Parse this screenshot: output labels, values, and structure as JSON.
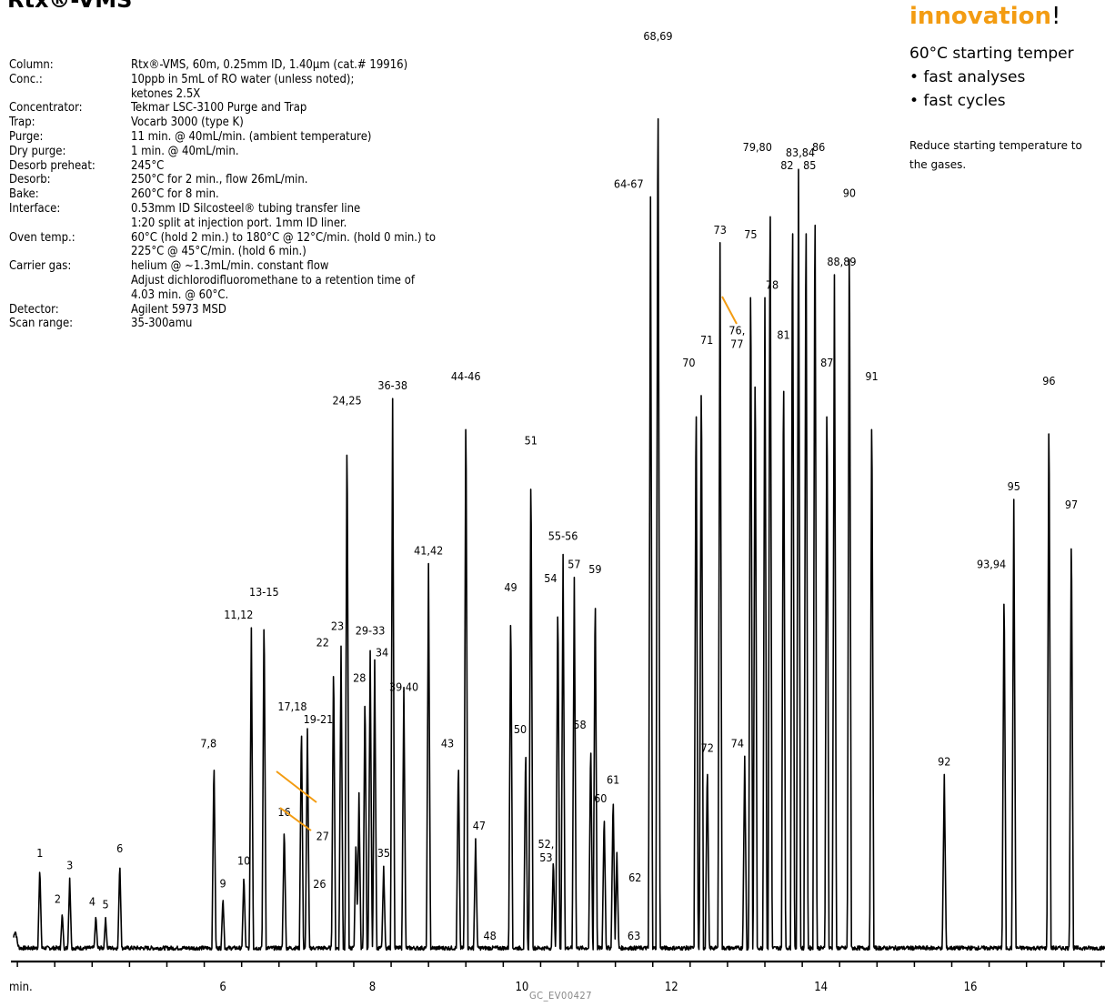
{
  "title": "Rtx®-VMS",
  "conditions": [
    {
      "label": "Column:",
      "value": "Rtx®-VMS, 60m, 0.25mm ID, 1.40µm (cat.# 19916)"
    },
    {
      "label": "Conc.:",
      "value": "10ppb in 5mL of RO water (unless noted);"
    },
    {
      "label": "",
      "value": "ketones 2.5X"
    },
    {
      "label": "Concentrator:",
      "value": "Tekmar LSC-3100 Purge and Trap"
    },
    {
      "label": "Trap:",
      "value": "Vocarb 3000 (type K)"
    },
    {
      "label": "Purge:",
      "value": "11 min. @ 40mL/min. (ambient temperature)"
    },
    {
      "label": "Dry purge:",
      "value": "1 min. @ 40mL/min."
    },
    {
      "label": "Desorb preheat:",
      "value": "245°C"
    },
    {
      "label": "Desorb:",
      "value": "250°C for 2 min., flow 26mL/min."
    },
    {
      "label": "Bake:",
      "value": "260°C for 8 min."
    },
    {
      "label": "Interface:",
      "value": "0.53mm ID Silcosteel® tubing transfer line"
    },
    {
      "label": "",
      "value": "1:20 split at injection port. 1mm ID liner."
    },
    {
      "label": "Oven temp.:",
      "value": "60°C (hold 2 min.) to 180°C @ 12°C/min. (hold 0 min.) to"
    },
    {
      "label": "",
      "value": "225°C @ 45°C/min. (hold 6 min.)"
    },
    {
      "label": "Carrier gas:",
      "value": "helium @ ~1.3mL/min. constant flow"
    },
    {
      "label": "",
      "value": "Adjust dichlorodifluoromethane to a retention time of"
    },
    {
      "label": "",
      "value": "4.03 min. @ 60°C."
    },
    {
      "label": "Detector:",
      "value": "Agilent 5973 MSD"
    },
    {
      "label": "Scan range:",
      "value": "35-300amu"
    }
  ],
  "promo": {
    "headline": "innovation",
    "exclaim": "!",
    "subtitle": "60°C starting temper",
    "bullets": [
      "• fast analyses",
      "• fast cycles"
    ],
    "note_lines": [
      "Reduce starting temperature to",
      "the gases."
    ]
  },
  "footer_code": "GC_EV00427",
  "chart_data": {
    "type": "line",
    "xlabel": "min.",
    "xlim": [
      3.2,
      17.8
    ],
    "ylim": [
      0,
      100
    ],
    "x_ticks": [
      6,
      8,
      10,
      12,
      14,
      16
    ],
    "peaks": [
      {
        "label": "1",
        "x": 3.55,
        "y": 9.5
      },
      {
        "label": "2",
        "x": 3.85,
        "y": 4.5
      },
      {
        "label": "3",
        "x": 3.95,
        "y": 8.2
      },
      {
        "label": "4",
        "x": 4.3,
        "y": 4.2
      },
      {
        "label": "5",
        "x": 4.43,
        "y": 3.9
      },
      {
        "label": "6",
        "x": 4.62,
        "y": 10.0
      },
      {
        "label": "7,8",
        "x": 5.88,
        "y": 21.5
      },
      {
        "label": "9",
        "x": 6.0,
        "y": 6.2
      },
      {
        "label": "10",
        "x": 6.28,
        "y": 8.7
      },
      {
        "label": "11,12",
        "x": 6.38,
        "y": 35.5
      },
      {
        "label": "13-15",
        "x": 6.55,
        "y": 38.0
      },
      {
        "label": "16",
        "x": 6.82,
        "y": 14.0
      },
      {
        "label": "17,18",
        "x": 7.05,
        "y": 25.5
      },
      {
        "label": "19-21",
        "x": 7.13,
        "y": 24.5
      },
      {
        "label": "22",
        "x": 7.48,
        "y": 32.5
      },
      {
        "label": "23",
        "x": 7.58,
        "y": 33.5
      },
      {
        "label": "24,25",
        "x": 7.66,
        "y": 58.5
      },
      {
        "label": "26",
        "x": 7.78,
        "y": 12.5
      },
      {
        "label": "27",
        "x": 7.82,
        "y": 17.5
      },
      {
        "label": "28",
        "x": 7.9,
        "y": 29.0
      },
      {
        "label": "29-33",
        "x": 7.97,
        "y": 33.0
      },
      {
        "label": "34",
        "x": 8.03,
        "y": 32.0
      },
      {
        "label": "35",
        "x": 8.15,
        "y": 9.5
      },
      {
        "label": "36-38",
        "x": 8.27,
        "y": 60.5
      },
      {
        "label": "39,40",
        "x": 8.42,
        "y": 29.0
      },
      {
        "label": "41,42",
        "x": 8.75,
        "y": 42.5
      },
      {
        "label": "43",
        "x": 9.15,
        "y": 21.5
      },
      {
        "label": "44-46",
        "x": 9.25,
        "y": 61.5
      },
      {
        "label": "47",
        "x": 9.38,
        "y": 12.5
      },
      {
        "label": "48",
        "x": 9.62,
        "y": 0.5
      },
      {
        "label": "49",
        "x": 9.85,
        "y": 38.5
      },
      {
        "label": "50",
        "x": 10.05,
        "y": 23.0
      },
      {
        "label": "51",
        "x": 10.12,
        "y": 54.5
      },
      {
        "label": "52,53",
        "x": 10.42,
        "y": 10.5
      },
      {
        "label": "54",
        "x": 10.48,
        "y": 39.5
      },
      {
        "label": "55-56",
        "x": 10.55,
        "y": 43.5
      },
      {
        "label": "57",
        "x": 10.7,
        "y": 41.0
      },
      {
        "label": "58",
        "x": 10.92,
        "y": 23.5
      },
      {
        "label": "59",
        "x": 10.98,
        "y": 40.5
      },
      {
        "label": "60",
        "x": 11.1,
        "y": 15.5
      },
      {
        "label": "61",
        "x": 11.22,
        "y": 17.5
      },
      {
        "label": "62",
        "x": 11.27,
        "y": 11.0
      },
      {
        "label": "63",
        "x": 11.45,
        "y": 0.5
      },
      {
        "label": "64-67",
        "x": 11.72,
        "y": 82.5
      },
      {
        "label": "68,69",
        "x": 11.82,
        "y": 98.0
      },
      {
        "label": "70",
        "x": 12.33,
        "y": 63.0
      },
      {
        "label": "71",
        "x": 12.4,
        "y": 65.5
      },
      {
        "label": "72",
        "x": 12.48,
        "y": 21.0
      },
      {
        "label": "73",
        "x": 12.65,
        "y": 77.5
      },
      {
        "label": "74",
        "x": 12.98,
        "y": 21.5
      },
      {
        "label": "75",
        "x": 13.06,
        "y": 77.0
      },
      {
        "label": "76,77",
        "x": 13.12,
        "y": 66.5
      },
      {
        "label": "78",
        "x": 13.25,
        "y": 71.5
      },
      {
        "label": "79,80",
        "x": 13.32,
        "y": 86.5
      },
      {
        "label": "81",
        "x": 13.5,
        "y": 66.0
      },
      {
        "label": "82",
        "x": 13.62,
        "y": 84.5
      },
      {
        "label": "83,84",
        "x": 13.7,
        "y": 85.5
      },
      {
        "label": "85",
        "x": 13.8,
        "y": 84.5
      },
      {
        "label": "86",
        "x": 13.92,
        "y": 85.5
      },
      {
        "label": "87",
        "x": 14.08,
        "y": 63.0
      },
      {
        "label": "88,89",
        "x": 14.18,
        "y": 74.0
      },
      {
        "label": "90",
        "x": 14.38,
        "y": 81.5
      },
      {
        "label": "91",
        "x": 14.68,
        "y": 61.5
      },
      {
        "label": "92",
        "x": 15.65,
        "y": 19.5
      },
      {
        "label": "93,94",
        "x": 16.45,
        "y": 41.0
      },
      {
        "label": "95",
        "x": 16.58,
        "y": 49.5
      },
      {
        "label": "96",
        "x": 17.05,
        "y": 61.0
      },
      {
        "label": "97",
        "x": 17.35,
        "y": 47.5
      }
    ]
  }
}
